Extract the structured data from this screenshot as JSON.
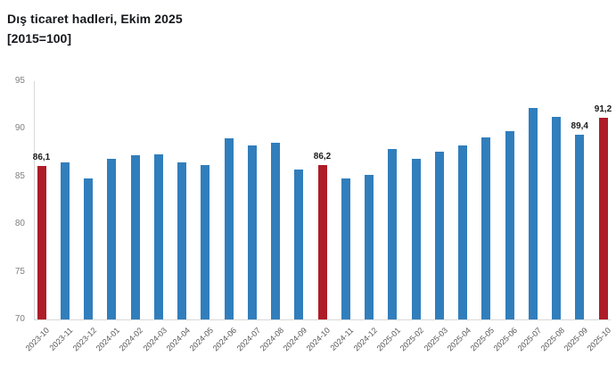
{
  "chart_data": {
    "type": "bar",
    "title": "Dış ticaret hadleri, Ekim 2025",
    "subtitle": "[2015=100]",
    "xlabel": "",
    "ylabel": "",
    "ylim": [
      70,
      95
    ],
    "y_ticks": [
      95,
      90,
      85,
      80,
      75,
      70
    ],
    "grid": false,
    "legend": false,
    "categories": [
      "2023-10",
      "2023-11",
      "2023-12",
      "2024-01",
      "2024-02",
      "2024-03",
      "2024-04",
      "2024-05",
      "2024-06",
      "2024-07",
      "2024-08",
      "2024-09",
      "2024-10",
      "2024-11",
      "2024-12",
      "2025-01",
      "2025-02",
      "2025-03",
      "2025-04",
      "2025-05",
      "2025-06",
      "2025-07",
      "2025-08",
      "2025-09",
      "2025-10"
    ],
    "values": [
      86.1,
      86.5,
      84.8,
      86.9,
      87.2,
      87.3,
      86.5,
      86.2,
      89.0,
      88.3,
      88.5,
      85.7,
      86.2,
      84.8,
      85.2,
      87.9,
      86.9,
      87.6,
      88.3,
      89.1,
      89.8,
      92.2,
      91.3,
      89.4,
      91.2
    ],
    "highlight_indices": [
      0,
      12,
      24
    ],
    "value_labels": {
      "0": "86,1",
      "12": "86,2",
      "23": "89,4",
      "24": "91,2"
    },
    "colors": {
      "bar": "#317EBC",
      "highlight": "#AE1C28",
      "axis_line": "#d9d9d9",
      "y_tick_label": "#7f7f7f",
      "x_tick_label": "#575757",
      "value_label": "#1a1a1a",
      "title": "#16181d",
      "background": "#ffffff"
    }
  }
}
